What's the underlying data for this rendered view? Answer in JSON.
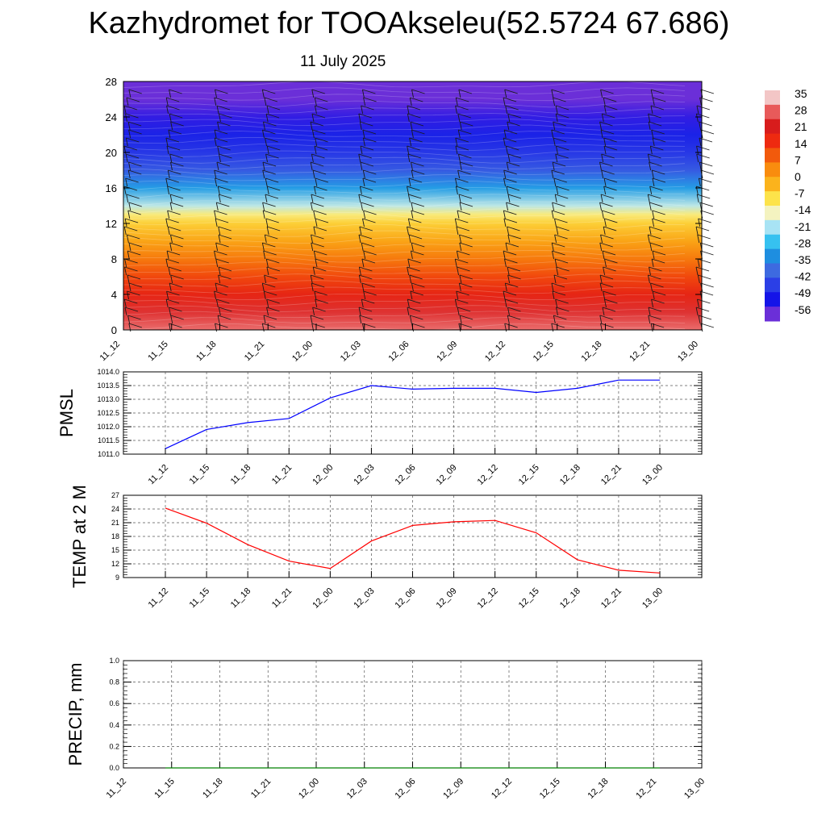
{
  "title": "Kazhydromet for TOOAkseleu(52.5724 67.686)",
  "date_label": "11 July 2025",
  "time_labels": [
    "11_12",
    "11_15",
    "11_18",
    "11_21",
    "12_00",
    "12_03",
    "12_06",
    "12_09",
    "12_12",
    "12_15",
    "12_18",
    "12_21",
    "13_00"
  ],
  "colorbar": {
    "labels": [
      "35",
      "28",
      "21",
      "14",
      "7",
      "0",
      "-7",
      "-14",
      "-21",
      "-28",
      "-35",
      "-42",
      "-49",
      "-56"
    ],
    "colors": [
      "#f3c6c6",
      "#e85a5a",
      "#d81c1c",
      "#ee2a10",
      "#f25a0c",
      "#f98c0e",
      "#fbb31c",
      "#fde34a",
      "#f4f3c0",
      "#a8e3f4",
      "#36c1f0",
      "#1e8ee0",
      "#3d6ae0",
      "#2b3fe6",
      "#1414e8",
      "#6b2fd8"
    ]
  },
  "chart_data": [
    {
      "type": "heatmap",
      "description_of_variable": "",
      "y_ticks": [
        0,
        4,
        8,
        12,
        16,
        20,
        24,
        28
      ],
      "ylim": [
        0,
        28
      ],
      "x_categories": [
        "11_12",
        "11_15",
        "11_18",
        "11_21",
        "12_00",
        "12_03",
        "12_06",
        "12_09",
        "12_12",
        "12_15",
        "12_18",
        "12_21",
        "13_00"
      ],
      "levels": [
        0,
        2,
        4,
        6,
        8,
        10,
        12,
        13,
        14,
        16,
        18,
        20,
        22,
        24,
        26,
        28
      ],
      "values_at_levels": [
        30,
        25,
        19,
        13,
        7,
        1,
        -5,
        -10,
        -18,
        -30,
        -40,
        -45,
        -48,
        -52,
        -56,
        -58
      ],
      "colorbar_range": [
        -56,
        35
      ],
      "has_wind_barbs": true
    },
    {
      "type": "line",
      "ylabel": "PMSL",
      "x": [
        "11_12",
        "11_15",
        "11_18",
        "11_21",
        "12_00",
        "12_03",
        "12_06",
        "12_09",
        "12_12",
        "12_15",
        "12_18",
        "12_21",
        "13_00"
      ],
      "series": [
        {
          "values": [
            1011.2,
            1011.9,
            1012.15,
            1012.3,
            1013.05,
            1013.5,
            1013.37,
            1013.4,
            1013.4,
            1013.25,
            1013.4,
            1013.7,
            1013.7
          ],
          "color": "#0000ff"
        }
      ],
      "ylim": [
        1011.0,
        1014.0
      ],
      "y_ticks": [
        "1011.0",
        "1011.5",
        "1012.0",
        "1012.5",
        "1013.0",
        "1013.5",
        "1014.0"
      ],
      "grid": true
    },
    {
      "type": "line",
      "ylabel": "TEMP at 2 M",
      "x": [
        "11_12",
        "11_15",
        "11_18",
        "11_21",
        "12_00",
        "12_03",
        "12_06",
        "12_09",
        "12_12",
        "12_15",
        "12_18",
        "12_21",
        "13_00"
      ],
      "series": [
        {
          "values": [
            24.2,
            20.9,
            16.2,
            12.6,
            11.0,
            17.0,
            20.4,
            21.2,
            21.5,
            18.8,
            12.9,
            10.6,
            10.0
          ],
          "color": "#ff0000"
        }
      ],
      "ylim": [
        9,
        27
      ],
      "y_ticks": [
        "9",
        "12",
        "15",
        "18",
        "21",
        "24",
        "27"
      ],
      "grid": true
    },
    {
      "type": "line",
      "ylabel": "PRECIP, mm",
      "x": [
        "11_12",
        "11_15",
        "11_18",
        "11_21",
        "12_00",
        "12_03",
        "12_06",
        "12_09",
        "12_12",
        "12_15",
        "12_18",
        "12_21",
        "13_00"
      ],
      "series": [
        {
          "values": [
            0,
            0,
            0,
            0,
            0,
            0,
            0,
            0,
            0,
            0,
            0,
            0,
            0
          ],
          "color": "#008000"
        }
      ],
      "ylim": [
        0.0,
        1.0
      ],
      "y_ticks": [
        "0.0",
        "0.2",
        "0.4",
        "0.6",
        "0.8",
        "1.0"
      ],
      "grid": true
    }
  ]
}
